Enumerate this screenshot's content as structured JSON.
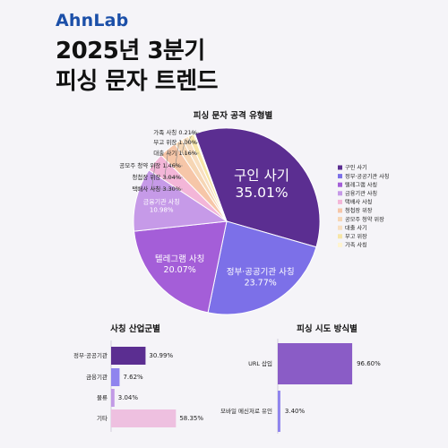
{
  "brand": "AhnLab",
  "headline": {
    "line1": "2025년 3분기",
    "line2": "피싱 문자 트렌드"
  },
  "colors": {
    "background": "#f5f4f8",
    "brand": "#1b4fa8"
  },
  "chart_data": [
    {
      "type": "pie",
      "title": "피싱 문자 공격 유형별",
      "unit": "%",
      "slices": [
        {
          "label": "구인 사기",
          "value": 35.01,
          "color": "#5b2e91"
        },
        {
          "label": "정부·공공기관 사칭",
          "value": 23.77,
          "color": "#7c70e8"
        },
        {
          "label": "텔레그램 사칭",
          "value": 20.07,
          "color": "#a45ed8"
        },
        {
          "label": "금융기관 사칭",
          "value": 10.98,
          "color": "#c69ae8"
        },
        {
          "label": "택배사 사칭",
          "value": 3.3,
          "color": "#f3b6d8"
        },
        {
          "label": "청첩장 위장",
          "value": 3.04,
          "color": "#f6c6a8"
        },
        {
          "label": "공모주 청약 위장",
          "value": 1.46,
          "color": "#f6d6b4"
        },
        {
          "label": "대출 사기",
          "value": 1.16,
          "color": "#f8dfc0"
        },
        {
          "label": "부고 위장",
          "value": 1.0,
          "color": "#f7e6a6"
        },
        {
          "label": "가족 사칭",
          "value": 0.21,
          "color": "#fff4d0"
        }
      ],
      "inside_labels": [
        {
          "slice": 0,
          "name": "구인 사기",
          "value": "35.01%"
        },
        {
          "slice": 1,
          "name": "정부·공공기관 사칭",
          "value": "23.77%"
        },
        {
          "slice": 2,
          "name": "텔레그램 사칭",
          "value": "20.07%"
        },
        {
          "slice": 3,
          "name": "금융기관 사칭",
          "value": "10.98%"
        }
      ],
      "callouts": [
        {
          "slice": 9,
          "text": "가족 사칭 0.21%"
        },
        {
          "slice": 8,
          "text": "부고 위장 1.00%"
        },
        {
          "slice": 7,
          "text": "대출 사기 1.16%"
        },
        {
          "slice": 6,
          "text": "공모주 청약 위장 1.46%"
        },
        {
          "slice": 5,
          "text": "청첩장 위장 3.04%"
        },
        {
          "slice": 4,
          "text": "택배사 사칭 3.30%"
        }
      ],
      "legend": [
        "구인 사기",
        "정부·공공기관 사칭",
        "텔레그램 사칭",
        "금융기관 사칭",
        "택배사 사칭",
        "청첩장 위장",
        "공모주 청약 위장",
        "대출 사기",
        "부고 위장",
        "가족 사칭"
      ],
      "legend_position": "right"
    },
    {
      "type": "bar",
      "orientation": "horizontal",
      "title": "사칭 산업군별",
      "unit": "%",
      "categories": [
        "정부·공공기관",
        "금융기관",
        "물류",
        "기타"
      ],
      "values": [
        30.99,
        7.62,
        3.04,
        58.35
      ],
      "value_labels": [
        "30.99%",
        "7.62%",
        "3.04%",
        "58.35%"
      ],
      "colors": [
        "#5b2e91",
        "#8f84ee",
        "#c29ae6",
        "#eec0e0"
      ],
      "xlim": [
        0,
        100
      ]
    },
    {
      "type": "bar",
      "orientation": "horizontal",
      "title": "피싱 시도 방식별",
      "unit": "%",
      "categories": [
        "URL 삽입",
        "모바일 메신저로 유인"
      ],
      "values": [
        96.6,
        3.4
      ],
      "value_labels": [
        "96.60%",
        "3.40%"
      ],
      "colors": [
        "#8a5cc6",
        "#8f84ee"
      ],
      "xlim": [
        0,
        100
      ]
    }
  ]
}
